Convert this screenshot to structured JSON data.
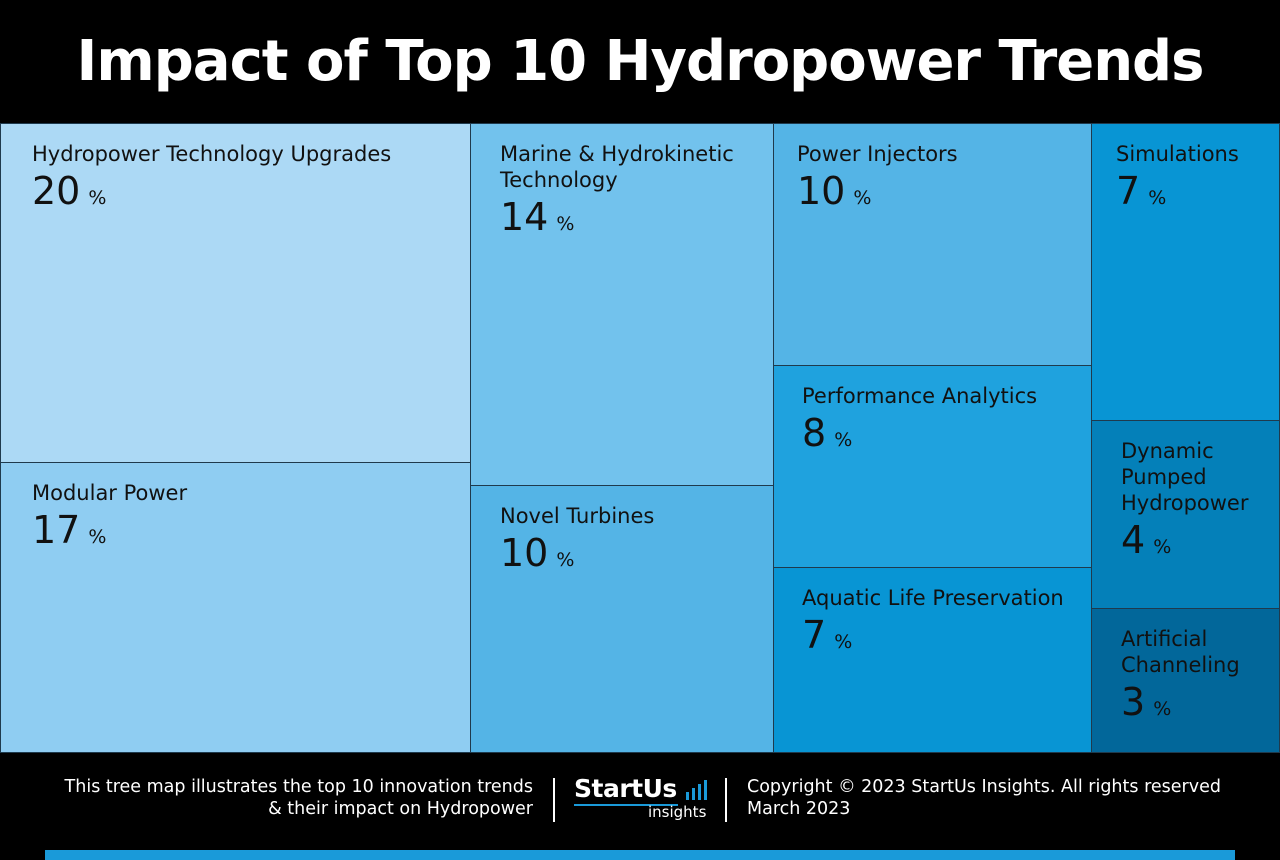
{
  "title": "Impact of Top 10 Hydropower Trends",
  "chart_data": {
    "type": "treemap",
    "unit": "%",
    "items": [
      {
        "label": "Hydropower Technology Upgrades",
        "value": 20,
        "color": "#acd9f5"
      },
      {
        "label": "Modular Power",
        "value": 17,
        "color": "#8fcdf2"
      },
      {
        "label": "Marine & Hydrokinetic\nTechnology",
        "value": 14,
        "color": "#72c2ed"
      },
      {
        "label": "Novel Turbines",
        "value": 10,
        "color": "#54b4e6"
      },
      {
        "label": "Power Injectors",
        "value": 10,
        "color": "#54b4e6"
      },
      {
        "label": "Performance Analytics",
        "value": 8,
        "color": "#1fa2de"
      },
      {
        "label": "Aquatic Life Preservation",
        "value": 7,
        "color": "#0895d4"
      },
      {
        "label": "Simulations",
        "value": 7,
        "color": "#0895d4"
      },
      {
        "label": "Dynamic\nPumped\nHydropower",
        "value": 4,
        "color": "#0480b9"
      },
      {
        "label": "Artificial\nChanneling",
        "value": 3,
        "color": "#02679a"
      }
    ]
  },
  "footer": {
    "description": "This tree map illustrates the top 10 innovation trends\n& their impact on Hydropower",
    "logo_main": "StartUs",
    "logo_sub": "insights",
    "copyright": "Copyright © 2023 StartUs Insights. All rights reserved",
    "date": "March 2023",
    "accent_color": "#1a9ad9"
  }
}
